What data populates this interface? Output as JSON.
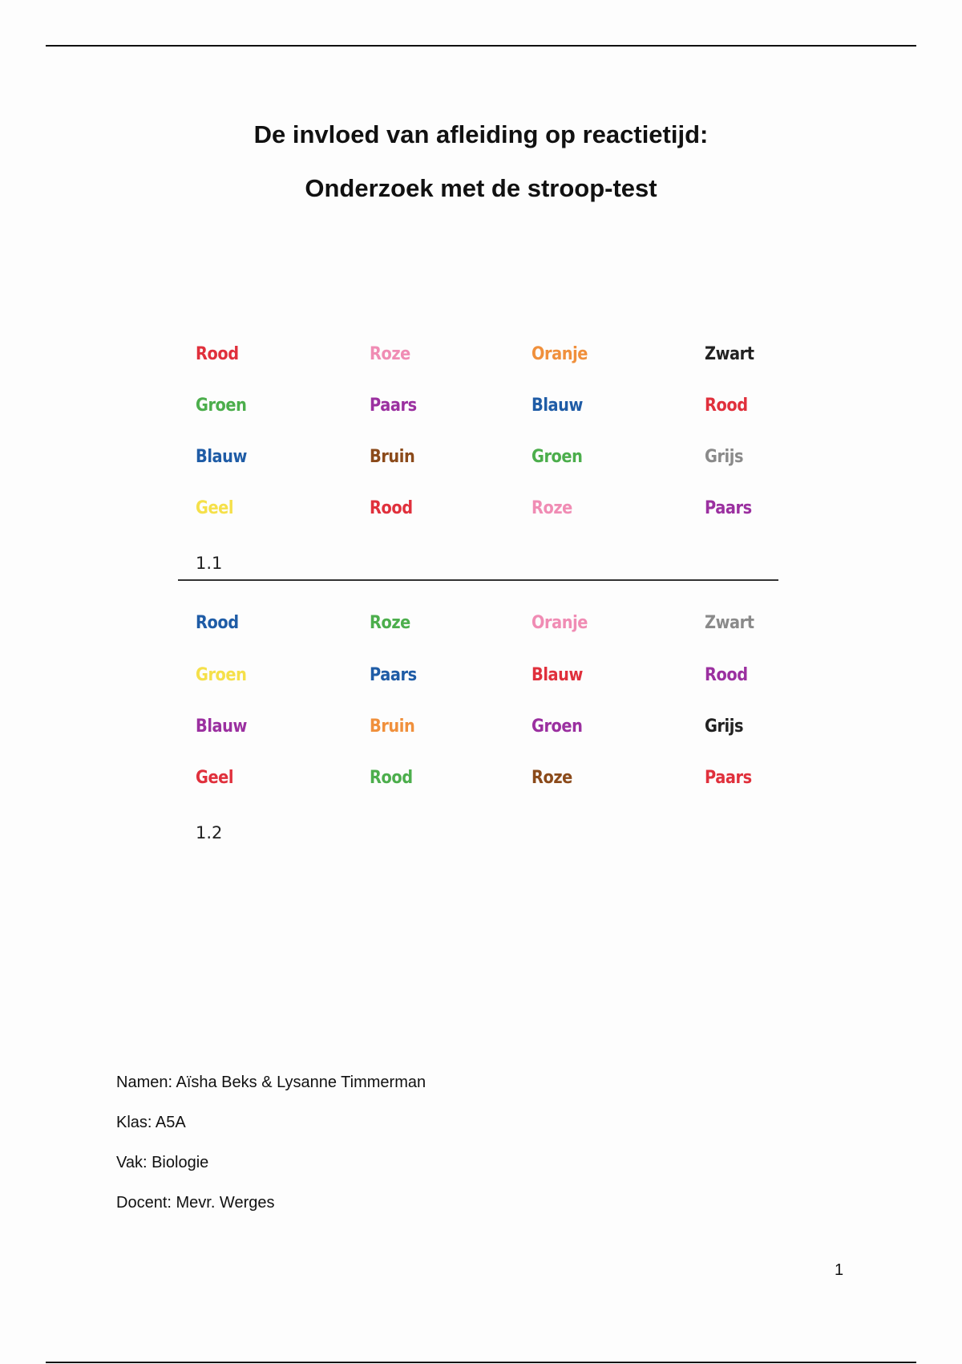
{
  "title_line1": "De invloed van afleiding op reactietijd:",
  "title_line2": "Onderzoek met de stroop-test",
  "grid_1_1": {
    "label": "1.1",
    "rows": [
      [
        {
          "text": "Rood",
          "color": "#e0303c"
        },
        {
          "text": "Roze",
          "color": "#f08cb4"
        },
        {
          "text": "Oranje",
          "color": "#f0903c"
        },
        {
          "text": "Zwart",
          "color": "#222222"
        }
      ],
      [
        {
          "text": "Groen",
          "color": "#4cae4c"
        },
        {
          "text": "Paars",
          "color": "#9b30a0"
        },
        {
          "text": "Blauw",
          "color": "#1f5ca6"
        },
        {
          "text": "Rood",
          "color": "#e0303c"
        }
      ],
      [
        {
          "text": "Blauw",
          "color": "#1f5ca6"
        },
        {
          "text": "Bruin",
          "color": "#8b4a1a"
        },
        {
          "text": "Groen",
          "color": "#4cae4c"
        },
        {
          "text": "Grijs",
          "color": "#8a8a8a"
        }
      ],
      [
        {
          "text": "Geel",
          "color": "#f5e04a"
        },
        {
          "text": "Rood",
          "color": "#e0303c"
        },
        {
          "text": "Roze",
          "color": "#f08cb4"
        },
        {
          "text": "Paars",
          "color": "#9b30a0"
        }
      ]
    ]
  },
  "grid_1_2": {
    "label": "1.2",
    "rows": [
      [
        {
          "text": "Rood",
          "color": "#1f5ca6"
        },
        {
          "text": "Roze",
          "color": "#4cae4c"
        },
        {
          "text": "Oranje",
          "color": "#f08cb4"
        },
        {
          "text": "Zwart",
          "color": "#8a8a8a"
        }
      ],
      [
        {
          "text": "Groen",
          "color": "#f5e04a"
        },
        {
          "text": "Paars",
          "color": "#1f5ca6"
        },
        {
          "text": "Blauw",
          "color": "#e0303c"
        },
        {
          "text": "Rood",
          "color": "#9b30a0"
        }
      ],
      [
        {
          "text": "Blauw",
          "color": "#9b30a0"
        },
        {
          "text": "Bruin",
          "color": "#f0903c"
        },
        {
          "text": "Groen",
          "color": "#9b30a0"
        },
        {
          "text": "Grijs",
          "color": "#222222"
        }
      ],
      [
        {
          "text": "Geel",
          "color": "#e0303c"
        },
        {
          "text": "Rood",
          "color": "#4cae4c"
        },
        {
          "text": "Roze",
          "color": "#8b4a1a"
        },
        {
          "text": "Paars",
          "color": "#e0303c"
        }
      ]
    ]
  },
  "info": {
    "names": "Namen: Aïsha Beks & Lysanne Timmerman",
    "class": "Klas: A5A",
    "subject": "Vak: Biologie",
    "teacher": "Docent: Mevr. Werges"
  },
  "page_number": "1"
}
